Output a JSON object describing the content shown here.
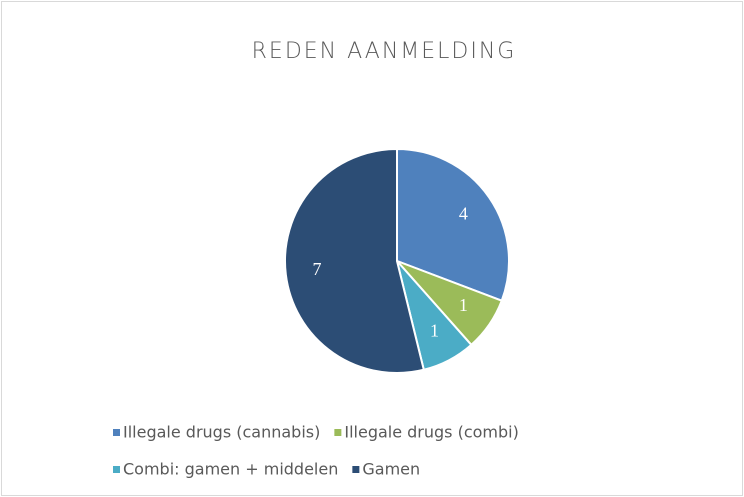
{
  "chart_data": {
    "type": "pie",
    "title": "REDEN AANMELDING",
    "categories": [
      "Illegale drugs (cannabis)",
      "Illegale drugs (combi)",
      "Combi: gamen + middelen",
      "Gamen"
    ],
    "values": [
      4,
      1,
      1,
      7
    ],
    "colors": [
      "#4f81bd",
      "#9bbb59",
      "#4bacc6",
      "#2c4d75"
    ],
    "legend": "bottom"
  }
}
